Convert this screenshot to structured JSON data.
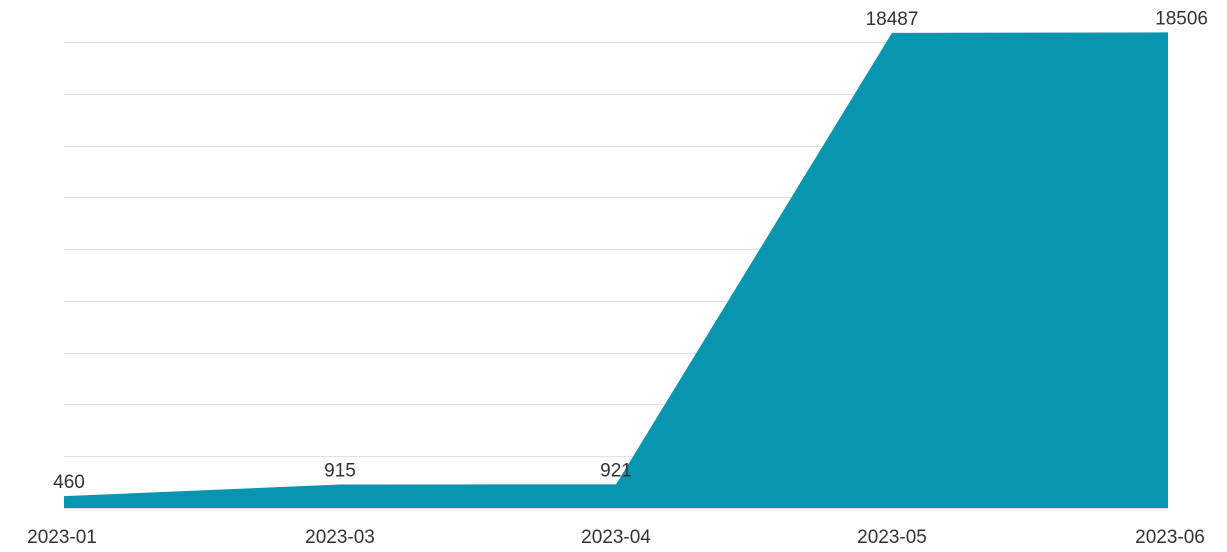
{
  "chart_data": {
    "type": "area",
    "title": "",
    "xlabel": "",
    "ylabel": "",
    "categories": [
      "2023-01",
      "2023-03",
      "2023-04",
      "2023-05",
      "2023-06"
    ],
    "series": [
      {
        "values": [
          460,
          915,
          921,
          18487,
          18506
        ]
      }
    ],
    "data_labels": [
      "460",
      "915",
      "921",
      "18487",
      "18506"
    ],
    "ylim": [
      0,
      18600
    ],
    "grid": true,
    "grid_lines": 10,
    "legend": "none",
    "color": "#0795b0"
  }
}
